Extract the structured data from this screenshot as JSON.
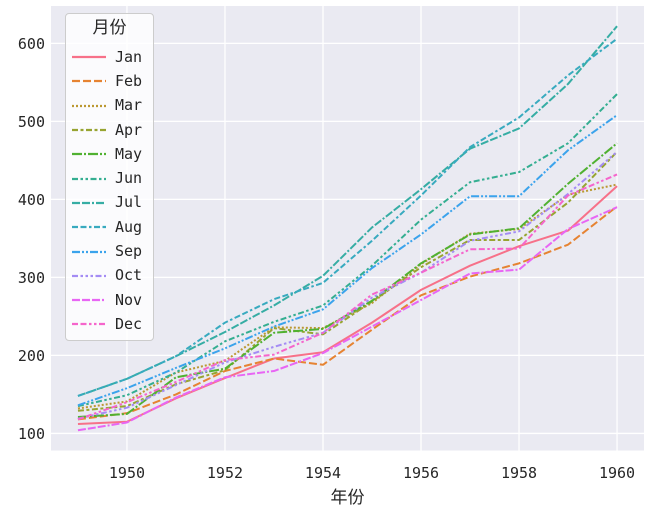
{
  "figure": {
    "background": "#ffffff",
    "axes_background": "#eaeaf2",
    "grid_color": "#ffffff",
    "text_color": "#262626"
  },
  "chart_data": {
    "type": "line",
    "title": "",
    "xlabel": "年份",
    "ylabel": "",
    "legend_title": "月份",
    "legend_position": "upper left",
    "grid": true,
    "x": [
      1949,
      1950,
      1951,
      1952,
      1953,
      1954,
      1955,
      1956,
      1957,
      1958,
      1959,
      1960
    ],
    "xticks": [
      1950,
      1952,
      1954,
      1956,
      1958,
      1960
    ],
    "yticks": [
      100,
      200,
      300,
      400,
      500,
      600
    ],
    "xlim": [
      1948.45,
      1960.55
    ],
    "ylim": [
      78.1,
      647.9
    ],
    "series": [
      {
        "name": "Jan",
        "color": "#f77189",
        "dash": [],
        "values": [
          112,
          115,
          145,
          171,
          196,
          204,
          242,
          284,
          315,
          340,
          360,
          417
        ]
      },
      {
        "name": "Feb",
        "color": "#e68332",
        "dash": [
          8,
          3
        ],
        "values": [
          118,
          126,
          150,
          180,
          196,
          188,
          233,
          277,
          301,
          318,
          342,
          391
        ]
      },
      {
        "name": "Mar",
        "color": "#bb9832",
        "dash": [
          2,
          2
        ],
        "values": [
          132,
          141,
          178,
          193,
          236,
          235,
          267,
          317,
          356,
          362,
          406,
          419
        ]
      },
      {
        "name": "Apr",
        "color": "#97a431",
        "dash": [
          6,
          2.5,
          3,
          2.5
        ],
        "values": [
          129,
          135,
          163,
          181,
          235,
          227,
          269,
          313,
          348,
          348,
          396,
          461
        ]
      },
      {
        "name": "May",
        "color": "#50b131",
        "dash": [
          10,
          2,
          2,
          2
        ],
        "values": [
          121,
          125,
          172,
          183,
          229,
          234,
          270,
          318,
          355,
          363,
          420,
          472
        ]
      },
      {
        "name": "Jun",
        "color": "#34ae91",
        "dash": [
          6,
          2.5,
          2.5,
          2.5,
          2.5,
          2.5
        ],
        "values": [
          135,
          149,
          178,
          218,
          243,
          264,
          315,
          374,
          422,
          435,
          472,
          535
        ]
      },
      {
        "name": "Jul",
        "color": "#36ada4",
        "dash": [
          8,
          2,
          8,
          2,
          2,
          2
        ],
        "values": [
          148,
          170,
          199,
          230,
          264,
          302,
          364,
          413,
          465,
          491,
          548,
          622
        ]
      },
      {
        "name": "Aug",
        "color": "#38aabf",
        "dash": [
          6,
          2.5,
          6,
          2.5,
          2.5,
          2.5
        ],
        "values": [
          148,
          170,
          199,
          242,
          272,
          293,
          347,
          405,
          467,
          505,
          559,
          606
        ]
      },
      {
        "name": "Sep",
        "color": "#3ba3ec",
        "dash": [
          8,
          2,
          2,
          2,
          2,
          2
        ],
        "values": [
          136,
          158,
          184,
          209,
          237,
          259,
          312,
          355,
          404,
          404,
          463,
          508
        ]
      },
      {
        "name": "Oct",
        "color": "#a48cf4",
        "dash": [
          6,
          2.5,
          2.5,
          2.5,
          2.5,
          2.5,
          2.5,
          2.5
        ],
        "values": [
          119,
          133,
          162,
          191,
          211,
          229,
          274,
          306,
          347,
          359,
          407,
          461
        ]
      },
      {
        "name": "Nov",
        "color": "#e866f4",
        "dash": [
          8,
          2,
          8,
          2,
          8,
          2,
          2,
          2
        ],
        "values": [
          104,
          114,
          146,
          172,
          180,
          203,
          237,
          271,
          305,
          310,
          362,
          390
        ]
      },
      {
        "name": "Dec",
        "color": "#f565cc",
        "dash": [
          6,
          2.5,
          6,
          2.5,
          2.5,
          2.5,
          2.5,
          2.5
        ],
        "values": [
          118,
          140,
          166,
          194,
          201,
          229,
          278,
          306,
          336,
          337,
          405,
          432
        ]
      }
    ]
  }
}
